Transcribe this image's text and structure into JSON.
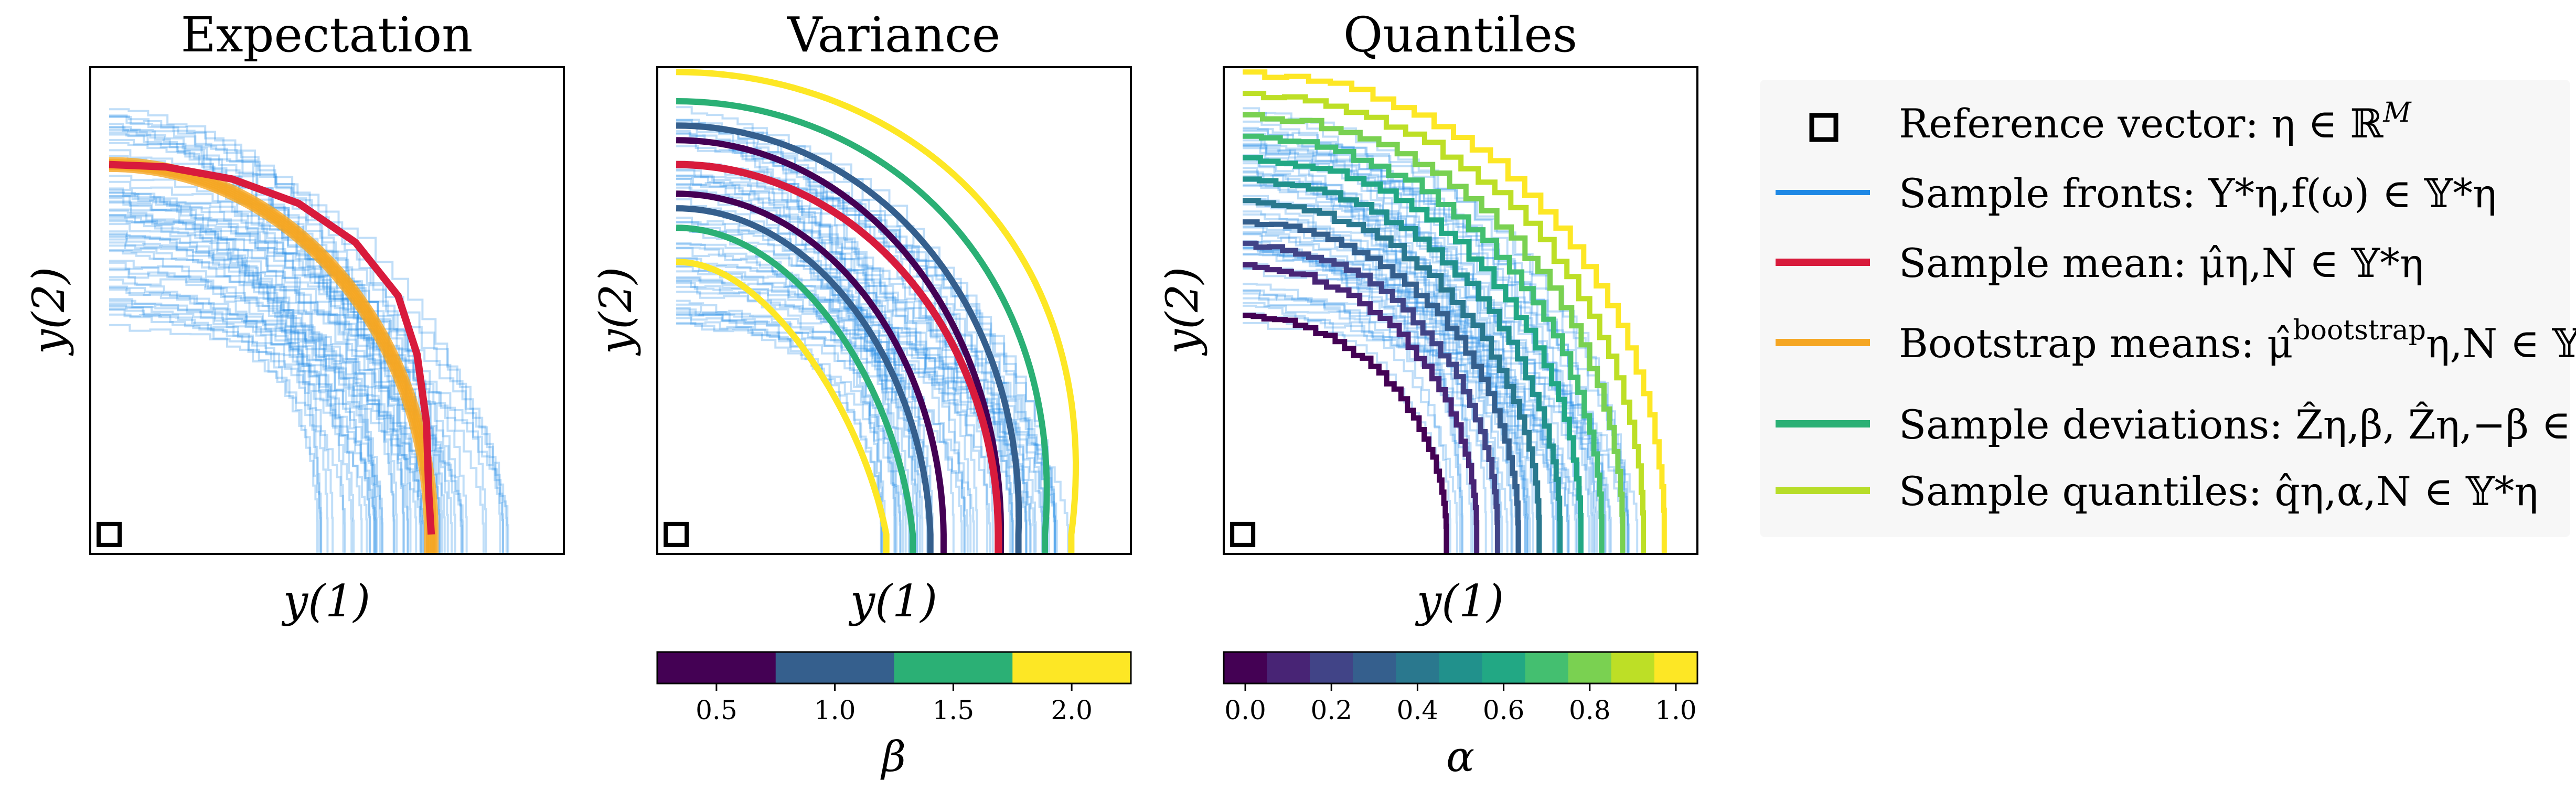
{
  "chart_data": [
    {
      "type": "line",
      "title": "Expectation",
      "xlabel": "y(1)",
      "ylabel": "y(2)",
      "xlim": [
        0,
        1
      ],
      "ylim": [
        0,
        1
      ],
      "series": [
        {
          "name": "Sample fronts",
          "color": "#1E88E5",
          "count": 60
        },
        {
          "name": "Bootstrap means",
          "color": "#F5A623",
          "count": 6
        },
        {
          "name": "Sample mean",
          "color": "#D81B3C",
          "points": [
            [
              0.04,
              0.8
            ],
            [
              0.16,
              0.795
            ],
            [
              0.3,
              0.77
            ],
            [
              0.44,
              0.72
            ],
            [
              0.56,
              0.64
            ],
            [
              0.65,
              0.53
            ],
            [
              0.69,
              0.41
            ],
            [
              0.71,
              0.27
            ],
            [
              0.715,
              0.12
            ],
            [
              0.72,
              0.04
            ]
          ]
        }
      ],
      "reference_point": [
        0.04,
        0.04
      ]
    },
    {
      "type": "line",
      "title": "Variance",
      "xlabel": "y(1)",
      "ylabel": "y(2)",
      "xlim": [
        0,
        1
      ],
      "ylim": [
        0,
        1
      ],
      "series": [
        {
          "name": "Sample fronts",
          "color": "#1E88E5",
          "count": 60
        },
        {
          "name": "Sample mean",
          "color": "#D81B3C"
        },
        {
          "name": "Sample deviations",
          "betas": [
            0.5,
            1.0,
            1.5,
            2.0
          ]
        }
      ],
      "reference_point": [
        0.04,
        0.04
      ],
      "colorbar": {
        "label": "β",
        "ticks": [
          "0.5",
          "1.0",
          "1.5",
          "2.0"
        ],
        "range": [
          0.25,
          2.25
        ],
        "bins": 4
      }
    },
    {
      "type": "line",
      "title": "Quantiles",
      "xlabel": "y(1)",
      "ylabel": "y(2)",
      "xlim": [
        0,
        1
      ],
      "ylim": [
        0,
        1
      ],
      "series": [
        {
          "name": "Sample fronts",
          "color": "#1E88E5",
          "count": 60
        },
        {
          "name": "Sample quantiles",
          "alphas": [
            0.0,
            0.1,
            0.2,
            0.3,
            0.4,
            0.5,
            0.6,
            0.7,
            0.8,
            0.9,
            1.0
          ]
        }
      ],
      "reference_point": [
        0.04,
        0.04
      ],
      "colorbar": {
        "label": "α",
        "ticks": [
          "0.0",
          "0.2",
          "0.4",
          "0.6",
          "0.8",
          "1.0"
        ],
        "range": [
          -0.05,
          1.05
        ],
        "bins": 11
      }
    }
  ],
  "legend": [
    {
      "marker": "square",
      "text": "Reference vector: η ∈ ℝ",
      "sup": "M",
      "color": "#000000"
    },
    {
      "marker": "line",
      "text": "Sample fronts: Y*η,f(ω) ∈ 𝕐*η",
      "color": "#1E88E5"
    },
    {
      "marker": "line",
      "text": "Sample mean: μ̂η,N ∈ 𝕐*η",
      "color": "#D81B3C"
    },
    {
      "marker": "line",
      "text": "Bootstrap means: μ̂",
      "sup": "bootstrap",
      "tail": "η,N ∈ 𝕐*η",
      "color": "#F5A623"
    },
    {
      "marker": "line",
      "text": "Sample deviations: Ẑη,β, Ẑη,−β ∈ 𝕃η",
      "color": "#2BB075"
    },
    {
      "marker": "line",
      "text": "Sample quantiles: q̂η,α,N ∈ 𝕐*η",
      "color": "#B7DD29"
    }
  ]
}
